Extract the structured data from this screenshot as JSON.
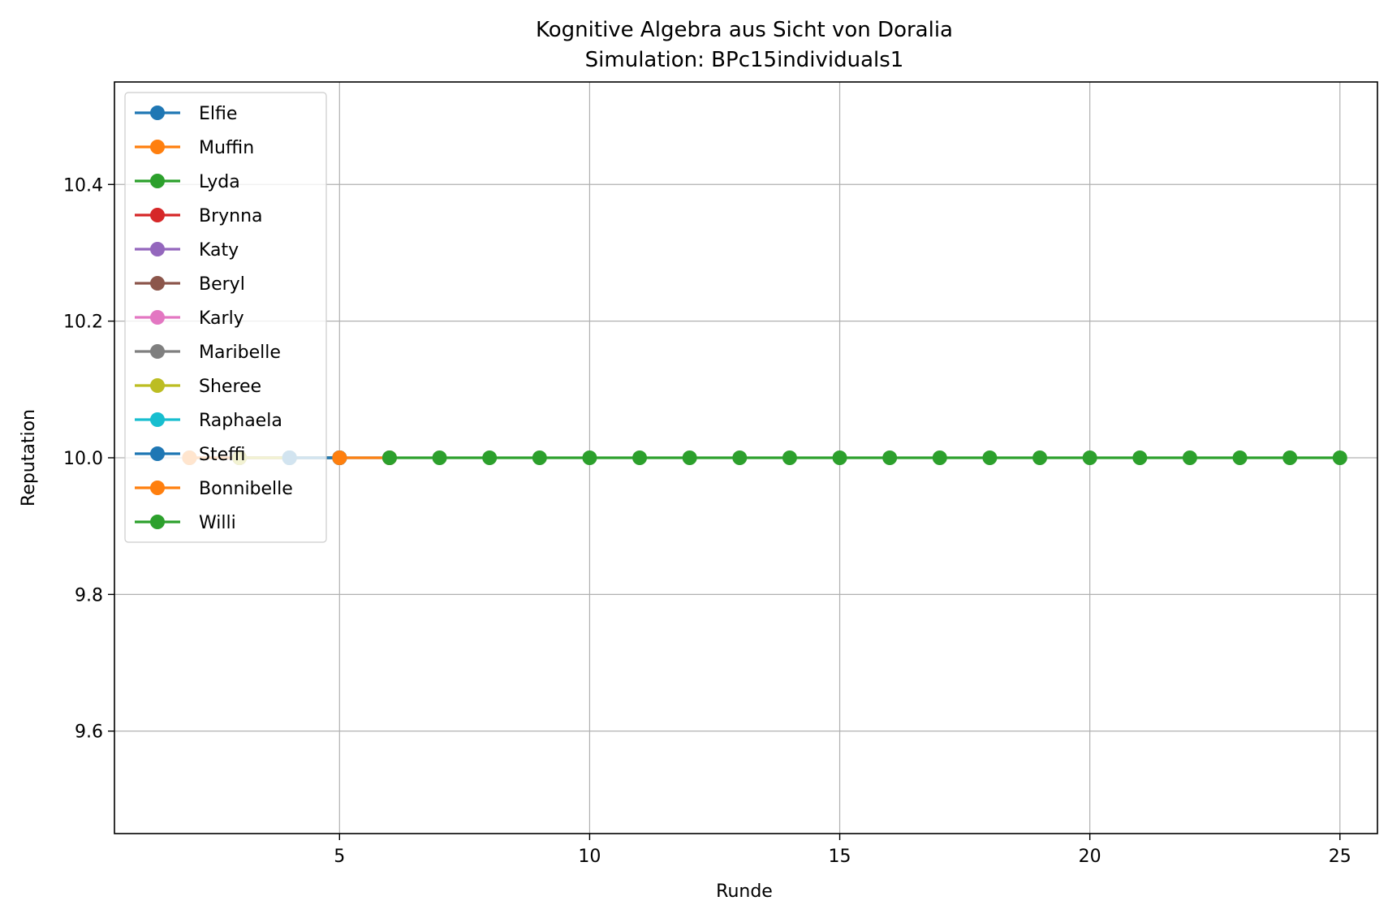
{
  "chart_data": {
    "type": "line",
    "title": "Kognitive Algebra aus Sicht von Doralia",
    "subtitle": "Simulation: BPc15individuals1",
    "xlabel": "Runde",
    "ylabel": "Reputation",
    "xlim": [
      0.5,
      25.75
    ],
    "ylim": [
      9.45,
      10.55
    ],
    "xticks": [
      5,
      10,
      15,
      20,
      25
    ],
    "yticks": [
      9.6,
      9.8,
      10.0,
      10.2,
      10.4
    ],
    "ytick_labels": [
      "9.6",
      "9.8",
      "10.0",
      "10.2",
      "10.4"
    ],
    "grid": true,
    "legend_position": "upper-left",
    "series": [
      {
        "name": "Elfie",
        "color": "#1f77b4",
        "x": [
          2,
          3,
          4
        ],
        "y": [
          10.0,
          10.0,
          10.0
        ]
      },
      {
        "name": "Muffin",
        "color": "#ff7f0e",
        "x": [
          2,
          3,
          4,
          5
        ],
        "y": [
          10.0,
          10.0,
          10.0,
          10.0
        ]
      },
      {
        "name": "Lyda",
        "color": "#2ca02c",
        "x": [
          3,
          4,
          5
        ],
        "y": [
          10.0,
          10.0,
          10.0
        ]
      },
      {
        "name": "Brynna",
        "color": "#d62728",
        "x": [
          3,
          4,
          5
        ],
        "y": [
          10.0,
          10.0,
          10.0
        ]
      },
      {
        "name": "Katy",
        "color": "#9467bd",
        "x": [
          3,
          4,
          5
        ],
        "y": [
          10.0,
          10.0,
          10.0
        ]
      },
      {
        "name": "Beryl",
        "color": "#8c564b",
        "x": [
          3,
          4,
          5
        ],
        "y": [
          10.0,
          10.0,
          10.0
        ]
      },
      {
        "name": "Karly",
        "color": "#e377c2",
        "x": [
          3,
          4,
          5
        ],
        "y": [
          10.0,
          10.0,
          10.0
        ]
      },
      {
        "name": "Maribelle",
        "color": "#7f7f7f",
        "x": [
          3,
          4,
          5
        ],
        "y": [
          10.0,
          10.0,
          10.0
        ]
      },
      {
        "name": "Sheree",
        "color": "#bcbd22",
        "x": [
          3,
          4,
          5
        ],
        "y": [
          10.0,
          10.0,
          10.0
        ]
      },
      {
        "name": "Raphaela",
        "color": "#17becf",
        "x": [
          4,
          5
        ],
        "y": [
          10.0,
          10.0
        ]
      },
      {
        "name": "Steffi",
        "color": "#1f77b4",
        "x": [
          4,
          5,
          6
        ],
        "y": [
          10.0,
          10.0,
          10.0
        ]
      },
      {
        "name": "Bonnibelle",
        "color": "#ff7f0e",
        "x": [
          5,
          6
        ],
        "y": [
          10.0,
          10.0
        ]
      },
      {
        "name": "Willi",
        "color": "#2ca02c",
        "x": [
          6,
          7,
          8,
          9,
          10,
          11,
          12,
          13,
          14,
          15,
          16,
          17,
          18,
          19,
          20,
          21,
          22,
          23,
          24,
          25
        ],
        "y": [
          10.0,
          10.0,
          10.0,
          10.0,
          10.0,
          10.0,
          10.0,
          10.0,
          10.0,
          10.0,
          10.0,
          10.0,
          10.0,
          10.0,
          10.0,
          10.0,
          10.0,
          10.0,
          10.0,
          10.0
        ]
      }
    ]
  }
}
